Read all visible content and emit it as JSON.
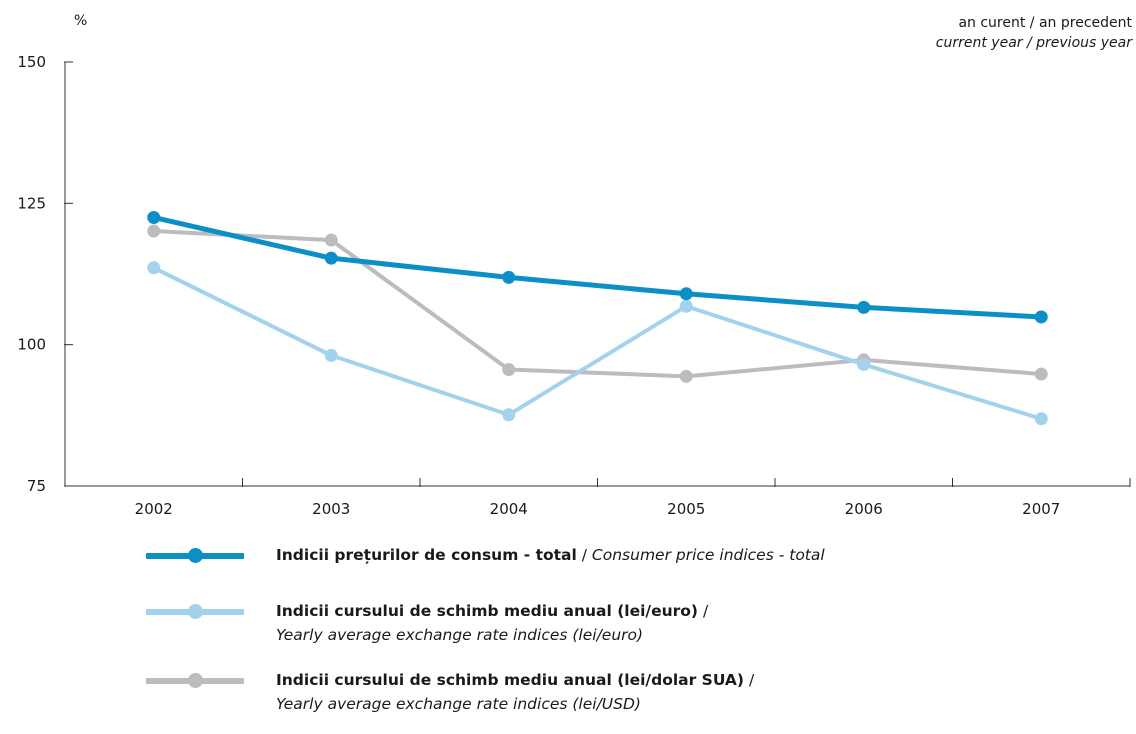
{
  "header": {
    "unit": "%",
    "note_ro": "an curent / an precedent",
    "note_en": "current year / previous year"
  },
  "chart_data": {
    "type": "line",
    "categories": [
      "2002",
      "2003",
      "2004",
      "2005",
      "2006",
      "2007"
    ],
    "ylim": [
      75,
      150
    ],
    "yticks": [
      75,
      100,
      125,
      150
    ],
    "grid": false,
    "legend_placement": "bottom",
    "series": [
      {
        "name": "Indicii prețurilor de consum - total / Consumer price indices - total",
        "name_ro": "Indicii prețurilor de consum - total",
        "name_en": "Consumer price indices - total",
        "values": [
          122.5,
          115.3,
          111.9,
          109.0,
          106.6,
          104.9
        ],
        "color": "#0c8fc7",
        "stroke": 5
      },
      {
        "name": "Indicii cursului de schimb mediu anual (lei/euro) / Yearly average exchange rate indices (lei/euro)",
        "name_ro": "Indicii cursului de schimb mediu anual (lei/euro)",
        "name_en": "Yearly average exchange rate indices (lei/euro)",
        "values": [
          113.6,
          98.1,
          87.6,
          106.8,
          96.5,
          86.9
        ],
        "color": "#a3d2ec",
        "stroke": 4
      },
      {
        "name": "Indicii cursului de schimb mediu anual (lei/dolar SUA) / Yearly average exchange rate indices (lei/USD)",
        "name_ro": "Indicii cursului de schimb mediu anual (lei/dolar SUA)",
        "name_en": "Yearly average exchange rate indices (lei/USD)",
        "values": [
          120.1,
          118.5,
          95.6,
          94.4,
          97.3,
          94.8
        ],
        "color": "#bcbcbf",
        "stroke": 4
      }
    ]
  }
}
